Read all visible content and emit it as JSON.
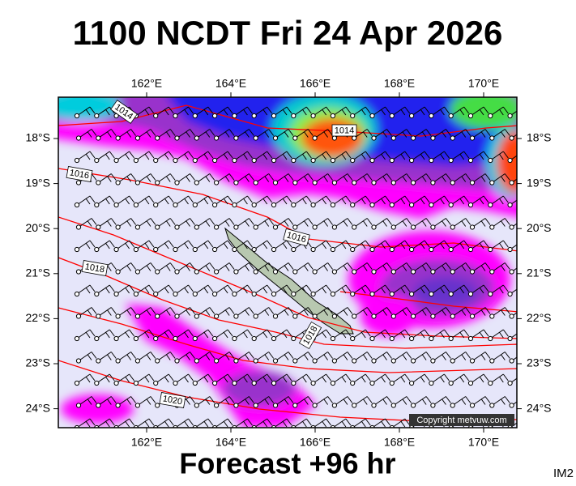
{
  "title": "1100 NCDT Fri 24 Apr 2026",
  "footer": "Forecast +96 hr",
  "corner_label": "IM2",
  "map": {
    "longitude_labels": [
      "162°E",
      "164°E",
      "166°E",
      "168°E",
      "170°E"
    ],
    "latitude_labels": [
      "18°S",
      "19°S",
      "20°S",
      "21°S",
      "22°S",
      "23°S",
      "24°S"
    ],
    "isobar_labels": [
      "1014",
      "1014",
      "1016",
      "1016",
      "1018",
      "1018",
      "1020"
    ],
    "copyright": "Copyright metvuw.com"
  }
}
